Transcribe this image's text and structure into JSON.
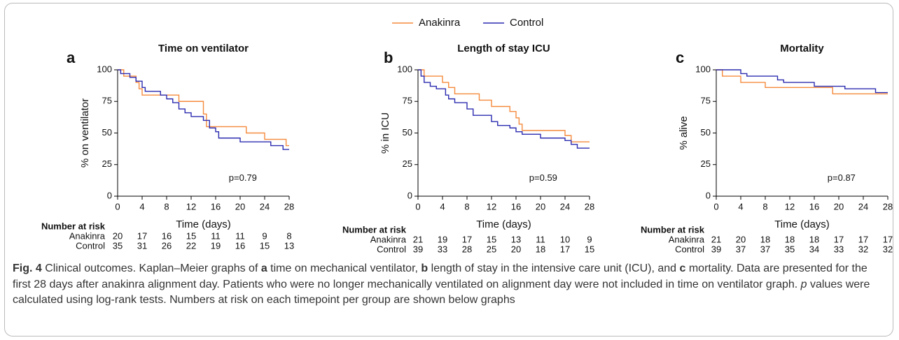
{
  "chart_data": [
    {
      "type": "step",
      "panel": "a",
      "title": "Time on ventilator",
      "x_label": "Time (days)",
      "y_label": "% on ventilator",
      "annotation": "p=0.79",
      "xlim": [
        0,
        28
      ],
      "ylim": [
        0,
        100
      ],
      "xticks": [
        0,
        4,
        8,
        12,
        16,
        20,
        24,
        28
      ],
      "yticks": [
        0,
        25,
        50,
        75,
        100
      ],
      "series": [
        {
          "name": "Anakinra",
          "color": "#f58a3c",
          "x": [
            0,
            1,
            3,
            3.5,
            4,
            10,
            14,
            14.5,
            21,
            24,
            27.5,
            28
          ],
          "values": [
            100,
            95,
            90,
            85,
            80,
            75,
            65,
            55,
            50,
            45,
            40,
            40
          ]
        },
        {
          "name": "Control",
          "color": "#2b2bb0",
          "x": [
            0,
            0.5,
            2,
            3,
            4,
            4.5,
            7,
            8,
            9,
            10,
            11,
            12,
            14,
            15,
            16,
            16.5,
            20,
            25,
            27,
            28
          ],
          "values": [
            100,
            97,
            94,
            91,
            86,
            83,
            80,
            77,
            74,
            69,
            66,
            63,
            60,
            54,
            51,
            46,
            43,
            40,
            37,
            37
          ]
        }
      ],
      "risk_table": {
        "title": "Number at risk",
        "rows": [
          {
            "name": "Anakinra",
            "values": [
              20,
              17,
              16,
              15,
              11,
              11,
              9,
              8
            ]
          },
          {
            "name": "Control",
            "values": [
              35,
              31,
              26,
              22,
              19,
              16,
              15,
              13
            ]
          }
        ]
      }
    },
    {
      "type": "step",
      "panel": "b",
      "title": "Length of stay ICU",
      "x_label": "Time (days)",
      "y_label": "% in ICU",
      "annotation": "p=0.59",
      "xlim": [
        0,
        28
      ],
      "ylim": [
        0,
        100
      ],
      "xticks": [
        0,
        4,
        8,
        12,
        16,
        20,
        24,
        28
      ],
      "yticks": [
        0,
        25,
        50,
        75,
        100
      ],
      "series": [
        {
          "name": "Anakinra",
          "color": "#f58a3c",
          "x": [
            0,
            1,
            4,
            5,
            6,
            10,
            12,
            15,
            16,
            16.5,
            17,
            24,
            25,
            28
          ],
          "values": [
            100,
            95,
            90,
            86,
            81,
            76,
            71,
            67,
            62,
            57,
            52,
            48,
            43,
            43
          ]
        },
        {
          "name": "Control",
          "color": "#2b2bb0",
          "x": [
            0,
            0.5,
            1,
            2,
            3,
            4.5,
            5,
            6,
            8,
            9,
            12,
            13,
            15,
            16,
            17,
            20,
            24,
            25,
            26,
            28
          ],
          "values": [
            100,
            95,
            90,
            87,
            85,
            80,
            77,
            74,
            69,
            64,
            59,
            56,
            54,
            51,
            49,
            46,
            44,
            41,
            38,
            38
          ]
        }
      ],
      "risk_table": {
        "title": "Number at risk",
        "rows": [
          {
            "name": "Anakinra",
            "values": [
              21,
              19,
              17,
              15,
              13,
              11,
              10,
              9
            ]
          },
          {
            "name": "Control",
            "values": [
              39,
              33,
              28,
              25,
              20,
              18,
              17,
              15
            ]
          }
        ]
      }
    },
    {
      "type": "step",
      "panel": "c",
      "title": "Mortality",
      "x_label": "Time (days)",
      "y_label": "% alive",
      "annotation": "p=0.87",
      "xlim": [
        0,
        28
      ],
      "ylim": [
        0,
        100
      ],
      "xticks": [
        0,
        4,
        8,
        12,
        16,
        20,
        24,
        28
      ],
      "yticks": [
        0,
        25,
        50,
        75,
        100
      ],
      "series": [
        {
          "name": "Anakinra",
          "color": "#f58a3c",
          "x": [
            0,
            1,
            4,
            8,
            19,
            28
          ],
          "values": [
            100,
            95,
            90,
            86,
            81,
            81
          ]
        },
        {
          "name": "Control",
          "color": "#2b2bb0",
          "x": [
            0,
            4,
            5,
            10,
            11,
            16,
            21,
            26,
            28
          ],
          "values": [
            100,
            97,
            95,
            92,
            90,
            87,
            85,
            82,
            82
          ]
        }
      ],
      "risk_table": {
        "title": "Number at risk",
        "rows": [
          {
            "name": "Anakinra",
            "values": [
              21,
              20,
              18,
              18,
              18,
              17,
              17,
              17
            ]
          },
          {
            "name": "Control",
            "values": [
              39,
              37,
              37,
              35,
              34,
              33,
              32,
              32
            ]
          }
        ]
      }
    }
  ],
  "caption": {
    "parts": [
      "Fig. 4",
      "  Clinical outcomes. Kaplan–Meier graphs of ",
      "a",
      " time on mechanical ventilator, ",
      "b",
      " length of stay in the intensive care unit (ICU), and ",
      "c",
      " mortality. Data are presented for the first 28 days after anakinra alignment day. Patients who were no longer mechanically ventilated on alignment day were not included in time on ventilator graph. ",
      "p",
      " values were calculated using log-rank tests. Numbers at risk on each timepoint per group are shown below graphs"
    ]
  }
}
